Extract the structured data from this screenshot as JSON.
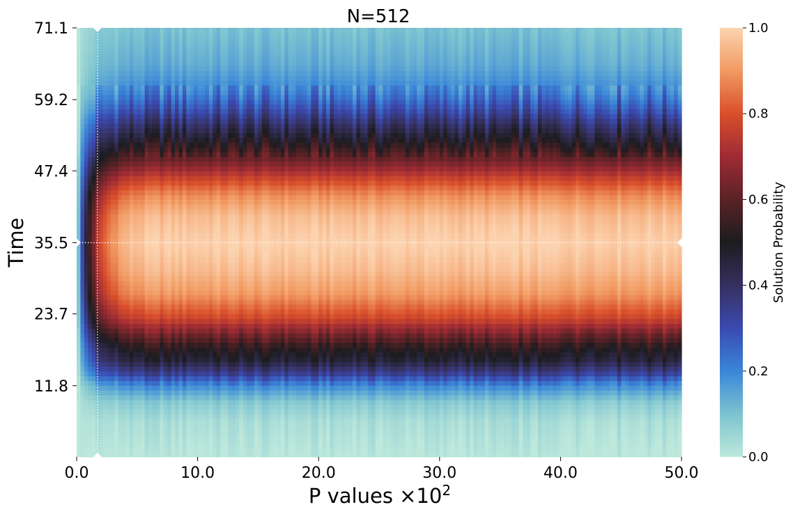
{
  "chart_data": {
    "type": "heatmap",
    "title": "N=512",
    "xlabel": "P values ×10",
    "xlabel_sup": "2",
    "ylabel": "Time",
    "xlim": [
      0,
      50
    ],
    "ylim": [
      0,
      71.1
    ],
    "x_ticks": [
      0,
      10,
      20,
      30,
      40,
      50
    ],
    "x_tick_labels": [
      "0.0",
      "10.0",
      "20.0",
      "30.0",
      "40.0",
      "50.0"
    ],
    "y_ticks": [
      11.8,
      23.7,
      35.5,
      47.4,
      59.2,
      71.1
    ],
    "y_tick_labels": [
      "11.8",
      "23.7",
      "35.5",
      "47.4",
      "59.2",
      "71.1"
    ],
    "colorbar": {
      "label": "Solution Probability",
      "range": [
        0,
        1
      ],
      "ticks": [
        0.0,
        0.2,
        0.4,
        0.6,
        0.8,
        1.0
      ],
      "tick_labels": [
        "0.0",
        "0.2",
        "0.4",
        "0.6",
        "0.8",
        "1.0"
      ]
    },
    "colormap": [
      [
        0.0,
        "#bde8db"
      ],
      [
        0.1,
        "#7cc3d0"
      ],
      [
        0.2,
        "#3a86d8"
      ],
      [
        0.3,
        "#3b4ab0"
      ],
      [
        0.4,
        "#36305f"
      ],
      [
        0.5,
        "#1c1c1f"
      ],
      [
        0.6,
        "#5a2226"
      ],
      [
        0.7,
        "#9e2b34"
      ],
      [
        0.8,
        "#d94f2b"
      ],
      [
        0.9,
        "#f19a62"
      ],
      [
        1.0,
        "#fcd3b0"
      ]
    ],
    "reference_lines": {
      "x": 1.72,
      "y": 35.5,
      "color": "#ffffff",
      "style": "dotted"
    },
    "probability_profile": {
      "description_time": [
        0,
        6,
        9,
        12,
        14,
        16,
        18,
        20,
        23,
        27,
        31,
        35.5,
        40,
        43.5,
        46,
        48.5,
        51,
        53,
        55,
        57.5,
        60,
        62,
        65,
        68,
        71.1
      ],
      "probability_large_P": [
        0.0,
        0.03,
        0.08,
        0.2,
        0.35,
        0.46,
        0.52,
        0.62,
        0.78,
        0.9,
        0.96,
        1.0,
        0.96,
        0.88,
        0.78,
        0.66,
        0.55,
        0.47,
        0.4,
        0.3,
        0.22,
        0.18,
        0.14,
        0.12,
        0.1
      ]
    }
  }
}
